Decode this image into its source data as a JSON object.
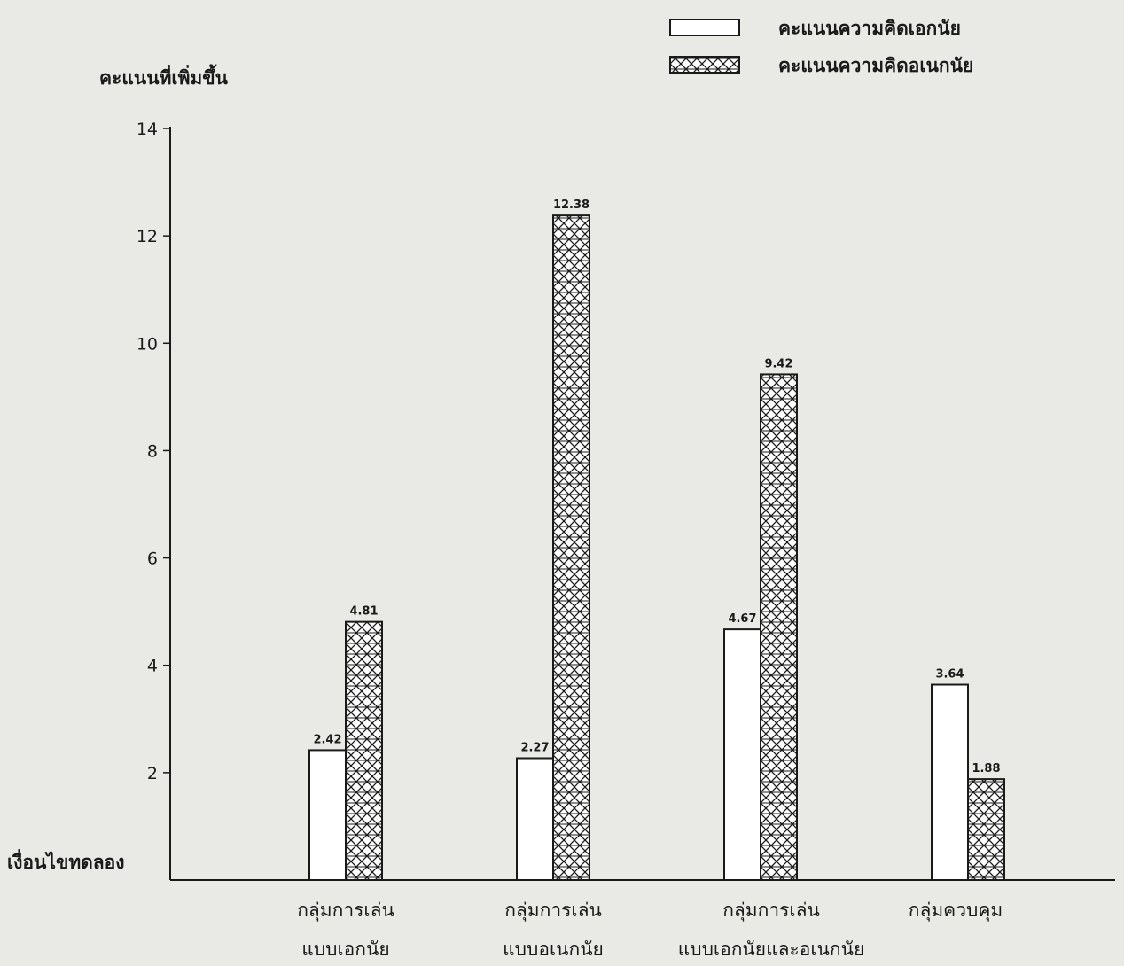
{
  "chart_data": {
    "type": "bar",
    "title": "",
    "ylabel": "คะแนนที่เพิ่มขึ้น",
    "xlabel": "เงื่อนไขทดลอง",
    "ylim": [
      0,
      14
    ],
    "yticks": [
      2,
      4,
      6,
      8,
      10,
      12,
      14
    ],
    "grid": false,
    "legend_position": "top-right",
    "categories": [
      [
        "กลุ่มการเล่น",
        "แบบเอกนัย"
      ],
      [
        "กลุ่มการเล่น",
        "แบบอเนกนัย"
      ],
      [
        "กลุ่มการเล่น",
        "แบบเอกนัยและอเนกนัย"
      ],
      [
        "กลุ่มควบคุม"
      ]
    ],
    "series": [
      {
        "name": "คะแนนความคิดเอกนัย",
        "values": [
          2.42,
          2.27,
          4.67,
          3.64
        ],
        "value_labels": [
          "2.42",
          "2.27",
          "4.67",
          "3.64"
        ],
        "fill": "plain",
        "color": "#ffffff"
      },
      {
        "name": "คะแนนความคิดอเนกนัย",
        "values": [
          4.81,
          12.38,
          9.42,
          1.88
        ],
        "value_labels": [
          "4.81",
          "12.38",
          "9.42",
          "1.88"
        ],
        "fill": "crosshatch",
        "color": "#1a1a1a"
      }
    ]
  }
}
